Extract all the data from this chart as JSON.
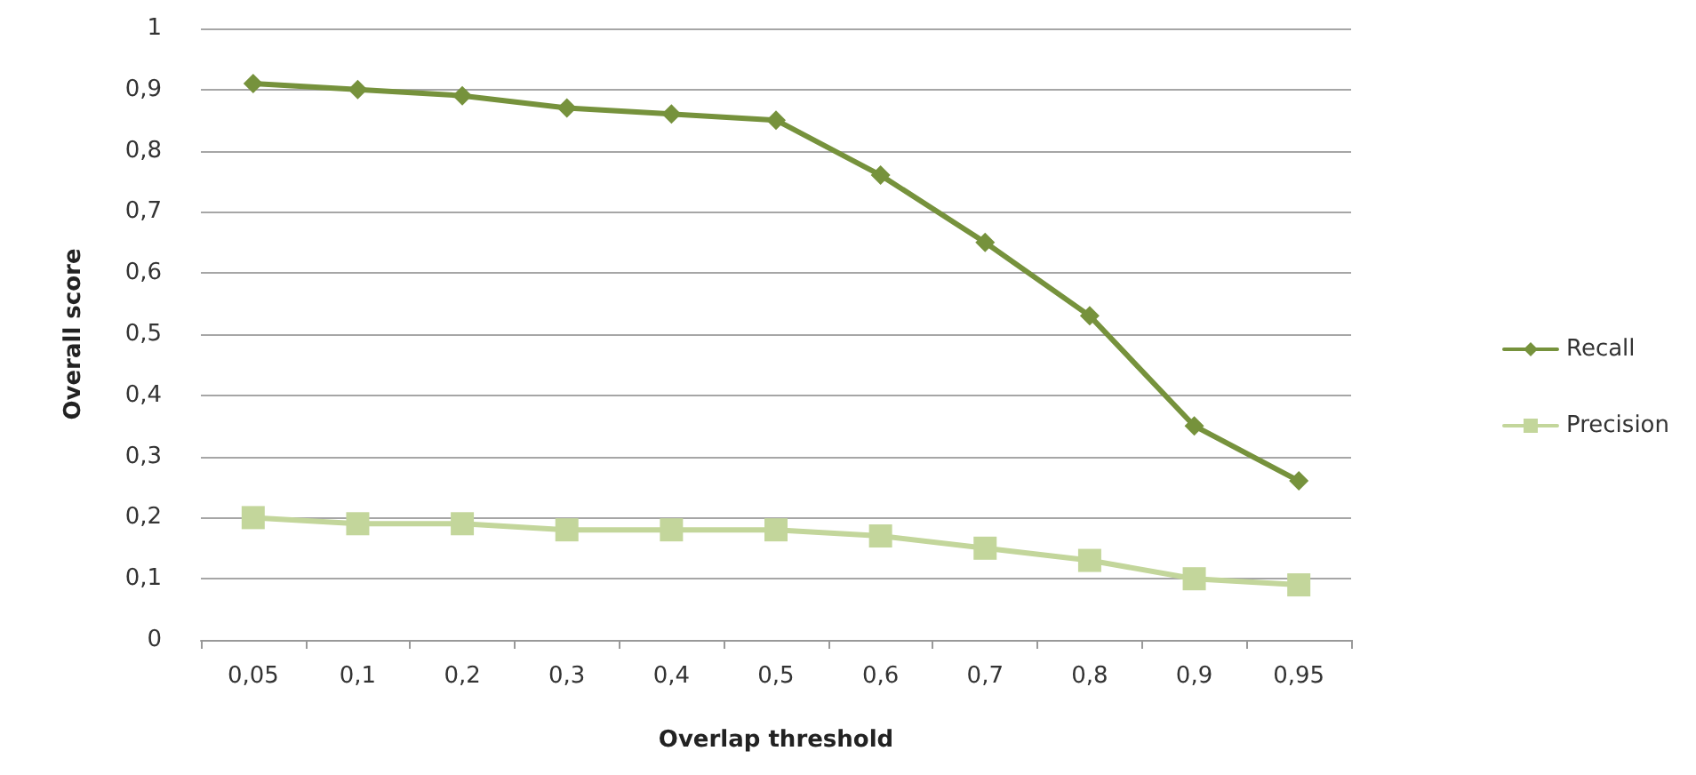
{
  "chart_data": {
    "type": "line",
    "xlabel": "Overlap threshold",
    "ylabel": "Overall score",
    "categories": [
      "0,05",
      "0,1",
      "0,2",
      "0,3",
      "0,4",
      "0,5",
      "0,6",
      "0,7",
      "0,8",
      "0,9",
      "0,95"
    ],
    "series": [
      {
        "name": "Recall",
        "color": "#76923c",
        "marker": "diamond",
        "values": [
          0.91,
          0.9,
          0.89,
          0.87,
          0.86,
          0.85,
          0.76,
          0.65,
          0.53,
          0.35,
          0.26
        ]
      },
      {
        "name": "Precision",
        "color": "#c3d69b",
        "marker": "square",
        "values": [
          0.2,
          0.19,
          0.19,
          0.18,
          0.18,
          0.18,
          0.17,
          0.15,
          0.13,
          0.1,
          0.09
        ]
      }
    ],
    "ylim": [
      0,
      1
    ],
    "yticks": [
      0,
      {
        "value": 0.1,
        "label": "0,1"
      },
      {
        "value": 0.2,
        "label": "0,2"
      },
      {
        "value": 0.3,
        "label": "0,3"
      },
      {
        "value": 0.4,
        "label": "0,4"
      },
      {
        "value": 0.5,
        "label": "0,5"
      },
      {
        "value": 0.6,
        "label": "0,6"
      },
      {
        "value": 0.7,
        "label": "0,7"
      },
      {
        "value": 0.8,
        "label": "0,8"
      },
      {
        "value": 0.9,
        "label": "0,9"
      },
      1
    ],
    "grid": "y",
    "legend": "right",
    "line_style": "solid"
  }
}
